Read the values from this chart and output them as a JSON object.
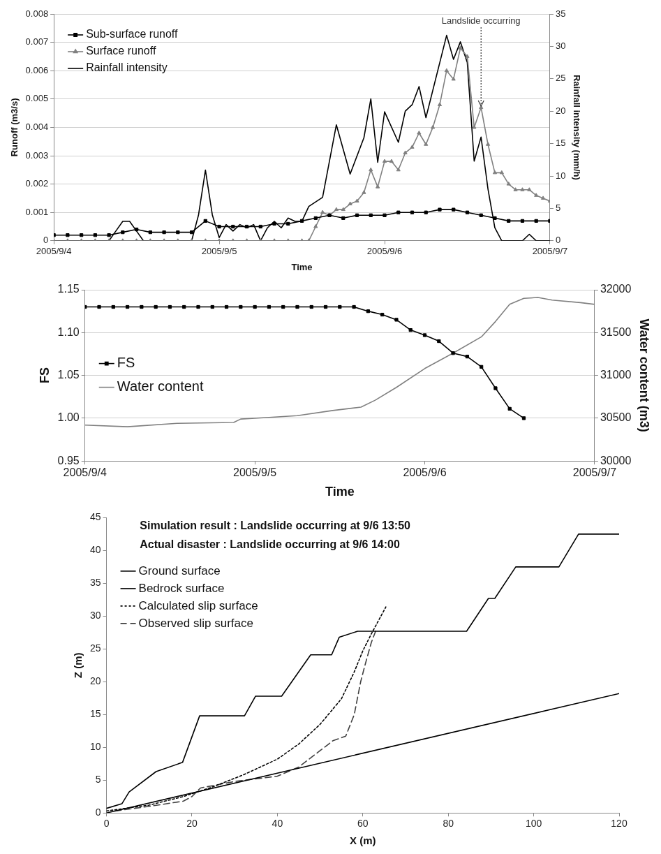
{
  "chart_data": [
    {
      "type": "line",
      "xlabel": "Time",
      "ylabel": "Runoff (m3/s)",
      "y2label": "Rainfall intensity (mm/h)",
      "xlim": [
        "2005-09-04T00:00",
        "2005-09-07T00:00"
      ],
      "xticks": [
        {
          "value": "2005-09-04",
          "label": "2005/9/4"
        },
        {
          "value": "2005-09-05",
          "label": "2005/9/5"
        },
        {
          "value": "2005-09-06",
          "label": "2005/9/6"
        },
        {
          "value": "2005-09-07",
          "label": "2005/9/7"
        }
      ],
      "ylim": [
        0,
        0.008
      ],
      "yticks": [
        0,
        0.001,
        0.002,
        0.003,
        0.004,
        0.005,
        0.006,
        0.007,
        0.008
      ],
      "y2lim": [
        0,
        35
      ],
      "y2ticks": [
        0,
        5,
        10,
        15,
        20,
        25,
        30,
        35
      ],
      "grid": "y",
      "legend": "top left",
      "annotations": [
        {
          "text": "Landslide occurring",
          "x": "2005-09-06T14:00",
          "y": 0.0047
        }
      ],
      "series": [
        {
          "name": "Sub-surface runoff",
          "color": "#000000",
          "marker": "square",
          "x": [
            "2005-09-04T00:00",
            "2005-09-04T02:00",
            "2005-09-04T04:00",
            "2005-09-04T06:00",
            "2005-09-04T08:00",
            "2005-09-04T10:00",
            "2005-09-04T12:00",
            "2005-09-04T14:00",
            "2005-09-04T16:00",
            "2005-09-04T18:00",
            "2005-09-04T20:00",
            "2005-09-04T22:00",
            "2005-09-05T00:00",
            "2005-09-05T02:00",
            "2005-09-05T04:00",
            "2005-09-05T06:00",
            "2005-09-05T08:00",
            "2005-09-05T10:00",
            "2005-09-05T12:00",
            "2005-09-05T14:00",
            "2005-09-05T16:00",
            "2005-09-05T18:00",
            "2005-09-05T20:00",
            "2005-09-05T22:00",
            "2005-09-06T00:00",
            "2005-09-06T02:00",
            "2005-09-06T04:00",
            "2005-09-06T06:00",
            "2005-09-06T08:00",
            "2005-09-06T10:00",
            "2005-09-06T12:00",
            "2005-09-06T14:00",
            "2005-09-06T16:00",
            "2005-09-06T18:00",
            "2005-09-06T20:00",
            "2005-09-06T22:00",
            "2005-09-07T00:00"
          ],
          "values": [
            0.0002,
            0.0002,
            0.0002,
            0.0002,
            0.0002,
            0.0003,
            0.0004,
            0.0003,
            0.0003,
            0.0003,
            0.0003,
            0.0007,
            0.0005,
            0.0005,
            0.0005,
            0.0005,
            0.0006,
            0.0006,
            0.0007,
            0.0008,
            0.0009,
            0.0008,
            0.0009,
            0.0009,
            0.0009,
            0.001,
            0.001,
            0.001,
            0.0011,
            0.0011,
            0.001,
            0.0009,
            0.0008,
            0.0007,
            0.0007,
            0.0007,
            0.0007
          ]
        },
        {
          "name": "Surface runoff",
          "color": "#808080",
          "marker": "triangle",
          "x": [
            "2005-09-04T00:00",
            "2005-09-04T02:00",
            "2005-09-04T04:00",
            "2005-09-04T06:00",
            "2005-09-04T08:00",
            "2005-09-04T10:00",
            "2005-09-04T12:00",
            "2005-09-04T14:00",
            "2005-09-04T16:00",
            "2005-09-04T18:00",
            "2005-09-04T20:00",
            "2005-09-04T22:00",
            "2005-09-05T00:00",
            "2005-09-05T02:00",
            "2005-09-05T04:00",
            "2005-09-05T06:00",
            "2005-09-05T08:00",
            "2005-09-05T10:00",
            "2005-09-05T12:00",
            "2005-09-05T13:00",
            "2005-09-05T14:00",
            "2005-09-05T15:00",
            "2005-09-05T16:00",
            "2005-09-05T17:00",
            "2005-09-05T18:00",
            "2005-09-05T19:00",
            "2005-09-05T20:00",
            "2005-09-05T21:00",
            "2005-09-05T22:00",
            "2005-09-05T23:00",
            "2005-09-06T00:00",
            "2005-09-06T01:00",
            "2005-09-06T02:00",
            "2005-09-06T03:00",
            "2005-09-06T04:00",
            "2005-09-06T05:00",
            "2005-09-06T06:00",
            "2005-09-06T07:00",
            "2005-09-06T08:00",
            "2005-09-06T09:00",
            "2005-09-06T10:00",
            "2005-09-06T11:00",
            "2005-09-06T12:00",
            "2005-09-06T13:00",
            "2005-09-06T14:00",
            "2005-09-06T15:00",
            "2005-09-06T16:00",
            "2005-09-06T17:00",
            "2005-09-06T18:00",
            "2005-09-06T19:00",
            "2005-09-06T20:00",
            "2005-09-06T21:00",
            "2005-09-06T22:00",
            "2005-09-06T23:00",
            "2005-09-07T00:00"
          ],
          "values": [
            0,
            0,
            0,
            0,
            0,
            0,
            0,
            0,
            0,
            0,
            0,
            0,
            0,
            0,
            0,
            0,
            0,
            0,
            0,
            0,
            0.0005,
            0.001,
            0.0009,
            0.0011,
            0.0011,
            0.0013,
            0.0014,
            0.0017,
            0.0025,
            0.0019,
            0.0028,
            0.0028,
            0.0025,
            0.0031,
            0.0033,
            0.0038,
            0.0034,
            0.004,
            0.0048,
            0.006,
            0.0057,
            0.0068,
            0.0065,
            0.004,
            0.0047,
            0.0034,
            0.0024,
            0.0024,
            0.002,
            0.0018,
            0.0018,
            0.0018,
            0.0016,
            0.0015,
            0.0014
          ]
        },
        {
          "name": "Rainfall intensity",
          "color": "#000000",
          "marker": "none",
          "axis": "y2",
          "x": [
            "2005-09-04T00:00",
            "2005-09-04T08:00",
            "2005-09-04T09:00",
            "2005-09-04T10:00",
            "2005-09-04T11:00",
            "2005-09-04T12:00",
            "2005-09-04T13:00",
            "2005-09-04T20:00",
            "2005-09-04T21:00",
            "2005-09-04T22:00",
            "2005-09-04T23:00",
            "2005-09-05T00:00",
            "2005-09-05T01:00",
            "2005-09-05T02:00",
            "2005-09-05T03:00",
            "2005-09-05T04:00",
            "2005-09-05T05:00",
            "2005-09-05T06:00",
            "2005-09-05T07:00",
            "2005-09-05T08:00",
            "2005-09-05T09:00",
            "2005-09-05T10:00",
            "2005-09-05T11:00",
            "2005-09-05T12:00",
            "2005-09-05T13:00",
            "2005-09-05T15:00",
            "2005-09-05T17:00",
            "2005-09-05T19:00",
            "2005-09-05T21:00",
            "2005-09-05T22:00",
            "2005-09-05T23:00",
            "2005-09-06T00:00",
            "2005-09-06T02:00",
            "2005-09-06T03:00",
            "2005-09-06T04:00",
            "2005-09-06T05:00",
            "2005-09-06T06:00",
            "2005-09-06T09:00",
            "2005-09-06T10:00",
            "2005-09-06T11:00",
            "2005-09-06T12:00",
            "2005-09-06T13:00",
            "2005-09-06T14:00",
            "2005-09-06T15:00",
            "2005-09-06T16:00",
            "2005-09-06T17:00",
            "2005-09-06T20:00",
            "2005-09-06T21:00",
            "2005-09-06T22:00",
            "2005-09-07T00:00"
          ],
          "values": [
            0,
            0,
            1.5,
            3,
            3,
            1.5,
            0,
            0,
            4,
            10.9,
            4,
            0.5,
            2.5,
            1.5,
            2.5,
            2,
            2.5,
            0,
            2,
            3,
            2,
            3.5,
            3,
            3,
            5.3,
            6.7,
            17.9,
            10.3,
            15.9,
            21.9,
            12.1,
            19.9,
            15.2,
            20,
            21,
            23.8,
            19,
            31.7,
            28,
            30.7,
            27.5,
            12.3,
            16,
            8,
            2,
            0,
            0,
            1,
            0,
            0
          ]
        }
      ]
    },
    {
      "type": "line",
      "xlabel": "Time",
      "ylabel": "FS",
      "y2label": "Water content (m3)",
      "xlim": [
        "2005-09-04T00:00",
        "2005-09-07T00:00"
      ],
      "xticks": [
        {
          "value": "2005-09-04",
          "label": "2005/9/4"
        },
        {
          "value": "2005-09-05",
          "label": "2005/9/5"
        },
        {
          "value": "2005-09-06",
          "label": "2005/9/6"
        },
        {
          "value": "2005-09-07",
          "label": "2005/9/7"
        }
      ],
      "ylim": [
        0.95,
        1.15
      ],
      "yticks": [
        0.95,
        {
          "value": 1,
          "label": "1.00"
        },
        1.05,
        {
          "value": 1.1,
          "label": "1.10"
        },
        1.15
      ],
      "y2lim": [
        30000,
        32000
      ],
      "y2ticks": [
        30000,
        30500,
        31000,
        31500,
        32000
      ],
      "grid": "y",
      "legend": "left",
      "series": [
        {
          "name": "FS",
          "color": "#000000",
          "marker": "square",
          "x": [
            "2005-09-04T00:00",
            "2005-09-04T02:00",
            "2005-09-04T04:00",
            "2005-09-04T06:00",
            "2005-09-04T08:00",
            "2005-09-04T10:00",
            "2005-09-04T12:00",
            "2005-09-04T14:00",
            "2005-09-04T16:00",
            "2005-09-04T18:00",
            "2005-09-04T20:00",
            "2005-09-04T22:00",
            "2005-09-05T00:00",
            "2005-09-05T02:00",
            "2005-09-05T04:00",
            "2005-09-05T06:00",
            "2005-09-05T08:00",
            "2005-09-05T10:00",
            "2005-09-05T12:00",
            "2005-09-05T14:00",
            "2005-09-05T16:00",
            "2005-09-05T18:00",
            "2005-09-05T20:00",
            "2005-09-05T22:00",
            "2005-09-06T00:00",
            "2005-09-06T02:00",
            "2005-09-06T04:00",
            "2005-09-06T06:00",
            "2005-09-06T08:00",
            "2005-09-06T10:00",
            "2005-09-06T12:00",
            "2005-09-06T14:00"
          ],
          "values": [
            1.13,
            1.13,
            1.13,
            1.13,
            1.13,
            1.13,
            1.13,
            1.13,
            1.13,
            1.13,
            1.13,
            1.13,
            1.13,
            1.13,
            1.13,
            1.13,
            1.13,
            1.13,
            1.13,
            1.13,
            1.125,
            1.121,
            1.115,
            1.103,
            1.097,
            1.09,
            1.076,
            1.072,
            1.06,
            1.035,
            1.011,
            1.0
          ]
        },
        {
          "name": "Water content",
          "color": "#808080",
          "marker": "none",
          "axis": "y2",
          "x": [
            "2005-09-04T00:00",
            "2005-09-04T06:00",
            "2005-09-04T13:00",
            "2005-09-04T21:00",
            "2005-09-04T22:00",
            "2005-09-05T02:00",
            "2005-09-05T06:00",
            "2005-09-05T11:00",
            "2005-09-05T15:00",
            "2005-09-05T17:00",
            "2005-09-05T20:00",
            "2005-09-06T00:00",
            "2005-09-06T04:00",
            "2005-09-06T08:00",
            "2005-09-06T10:00",
            "2005-09-06T12:00",
            "2005-09-06T14:00",
            "2005-09-06T16:00",
            "2005-09-06T18:00",
            "2005-09-06T22:00",
            "2005-09-07T00:00"
          ],
          "values": [
            30420,
            30400,
            30440,
            30450,
            30490,
            30510,
            30530,
            30590,
            30630,
            30710,
            30860,
            31080,
            31260,
            31450,
            31630,
            31830,
            31900,
            31910,
            31880,
            31850,
            31830
          ]
        }
      ]
    },
    {
      "type": "line",
      "title": "Simulation result : Landslide occurring at 9/6 13:50",
      "subtitle": "Actual disaster : Landslide occurring at 9/6 14:00",
      "xlabel": "X (m)",
      "ylabel": "Z (m)",
      "xlim": [
        0,
        120
      ],
      "xticks": [
        0,
        20,
        40,
        60,
        80,
        100,
        120
      ],
      "ylim": [
        0,
        45
      ],
      "yticks": [
        0,
        5,
        10,
        15,
        20,
        25,
        30,
        35,
        40,
        45
      ],
      "legend": "top left",
      "series": [
        {
          "name": "Ground surface",
          "color": "#000000",
          "line_style": "solid",
          "x": [
            0,
            3.6,
            5.3,
            11.6,
            17.8,
            21.8,
            32.3,
            34.9,
            41,
            47.8,
            52.7,
            54.5,
            58.8,
            84.3,
            89.4,
            90.9,
            95.8,
            105.9,
            110.5,
            120
          ],
          "values": [
            0.7,
            1.4,
            3.2,
            6.3,
            7.7,
            14.8,
            14.8,
            17.8,
            17.8,
            24.1,
            24.1,
            26.8,
            27.7,
            27.7,
            32.7,
            32.7,
            37.5,
            37.5,
            42.5,
            42.5
          ]
        },
        {
          "name": "Bedrock surface",
          "color": "#000000",
          "line_style": "solid",
          "x": [
            0,
            120
          ],
          "values": [
            0,
            18.2
          ]
        },
        {
          "name": "Calculated slip surface",
          "color": "#000000",
          "line_style": "dotted",
          "x": [
            0,
            10,
            18,
            25,
            32,
            40,
            45,
            50,
            55,
            58,
            60,
            62,
            65.4
          ],
          "values": [
            0.3,
            1.2,
            2.5,
            4,
            5.8,
            8.2,
            10.5,
            13.5,
            17.4,
            21.5,
            24.7,
            27.3,
            31.4
          ]
        },
        {
          "name": "Observed slip surface",
          "color": "#404040",
          "line_style": "dashed",
          "x": [
            2,
            10,
            18,
            20,
            22,
            30,
            40,
            45,
            50,
            53,
            56,
            58,
            59.5,
            60.5,
            62,
            63
          ],
          "values": [
            0.3,
            1,
            1.8,
            2.5,
            3.8,
            4.8,
            5.6,
            7,
            9.5,
            11,
            11.7,
            15,
            20,
            22.5,
            26,
            27.7
          ]
        }
      ]
    }
  ]
}
